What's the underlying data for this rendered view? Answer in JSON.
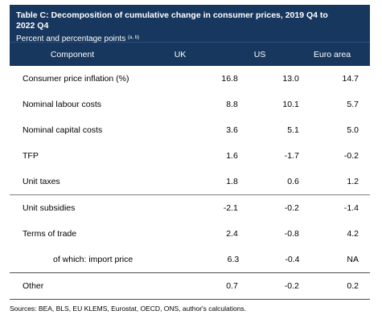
{
  "table": {
    "title_line1": "Table C: Decomposition of cumulative change in consumer prices, 2019 Q4 to",
    "title_line2": "2022 Q4",
    "subtitle": "Percent and percentage points",
    "subtitle_note": "(a, b)",
    "columns": [
      "Component",
      "UK",
      "US",
      "Euro area"
    ],
    "rows": [
      {
        "label": "Consumer price inflation (%)",
        "uk": "16.8",
        "us": "13.0",
        "ea": "14.7"
      },
      {
        "label": "Nominal labour costs",
        "uk": "8.8",
        "us": "10.1",
        "ea": "5.7"
      },
      {
        "label": "Nominal capital costs",
        "uk": "3.6",
        "us": "5.1",
        "ea": "5.0"
      },
      {
        "label": "TFP",
        "uk": "1.6",
        "us": "-1.7",
        "ea": "-0.2"
      },
      {
        "label": "Unit taxes",
        "uk": "1.8",
        "us": "0.6",
        "ea": "1.2"
      },
      {
        "label": "Unit subsidies",
        "uk": "-2.1",
        "us": "-0.2",
        "ea": "-1.4"
      },
      {
        "label": "Terms of trade",
        "uk": "2.4",
        "us": "-0.8",
        "ea": "4.2"
      },
      {
        "label": "of which: import price",
        "uk": "6.3",
        "us": "-0.4",
        "ea": "NA"
      },
      {
        "label": "Other",
        "uk": "0.7",
        "us": "-0.2",
        "ea": "0.2"
      }
    ],
    "source": "Sources: BEA, BLS, EU KLEMS, Eurostat, OECD, ONS, author's calculations."
  }
}
